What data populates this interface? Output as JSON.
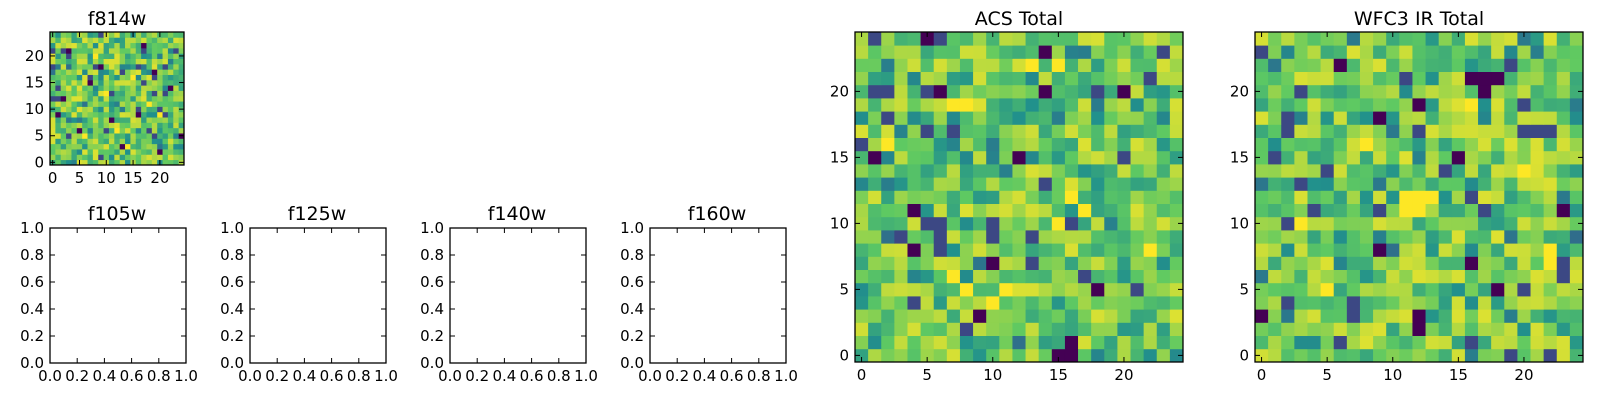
{
  "colormap": [
    "#440154",
    "#3b528b",
    "#21918c",
    "#5ec962",
    "#fde725"
  ],
  "chart_data": [
    {
      "id": "f814w",
      "type": "heatmap",
      "title": "f814w",
      "xlim": [
        -0.5,
        24.5
      ],
      "ylim": [
        -0.5,
        24.5
      ],
      "xticks": [
        0,
        5,
        10,
        15,
        20
      ],
      "yticks": [
        0,
        5,
        10,
        15,
        20
      ],
      "xtick_labels": [
        "0",
        "5",
        "10",
        "15",
        "20"
      ],
      "ytick_labels": [
        "0",
        "5",
        "10",
        "15",
        "20"
      ],
      "grid_size": 25,
      "seed": 814,
      "dark_cells": [
        [
          3,
          21
        ],
        [
          9,
          18
        ],
        [
          19,
          17
        ],
        [
          2,
          12
        ],
        [
          16,
          9
        ],
        [
          5,
          6
        ],
        [
          13,
          3
        ],
        [
          20,
          2
        ],
        [
          22,
          14
        ],
        [
          7,
          15
        ],
        [
          11,
          8
        ],
        [
          17,
          22
        ],
        [
          24,
          5
        ],
        [
          1,
          9
        ]
      ],
      "yellow_cells": [
        [
          6,
          5
        ],
        [
          10,
          13
        ],
        [
          15,
          16
        ],
        [
          18,
          11
        ],
        [
          12,
          6
        ],
        [
          8,
          20
        ],
        [
          20,
          9
        ],
        [
          14,
          3
        ]
      ]
    },
    {
      "id": "f105w",
      "type": "heatmap",
      "title": "f105w",
      "empty": true,
      "xlim": [
        0,
        1
      ],
      "ylim": [
        0,
        1
      ],
      "xticks": [
        0,
        0.2,
        0.4,
        0.6,
        0.8,
        1.0
      ],
      "yticks": [
        0,
        0.2,
        0.4,
        0.6,
        0.8,
        1.0
      ],
      "xtick_labels": [
        "0.0",
        "0.2",
        "0.4",
        "0.6",
        "0.8",
        "1.0"
      ],
      "ytick_labels": [
        "0.0",
        "0.2",
        "0.4",
        "0.6",
        "0.8",
        "1.0"
      ]
    },
    {
      "id": "f125w",
      "type": "heatmap",
      "title": "f125w",
      "empty": true,
      "xlim": [
        0,
        1
      ],
      "ylim": [
        0,
        1
      ],
      "xticks": [
        0,
        0.2,
        0.4,
        0.6,
        0.8,
        1.0
      ],
      "yticks": [
        0,
        0.2,
        0.4,
        0.6,
        0.8,
        1.0
      ],
      "xtick_labels": [
        "0.0",
        "0.2",
        "0.4",
        "0.6",
        "0.8",
        "1.0"
      ],
      "ytick_labels": [
        "0.0",
        "0.2",
        "0.4",
        "0.6",
        "0.8",
        "1.0"
      ]
    },
    {
      "id": "f140w",
      "type": "heatmap",
      "title": "f140w",
      "empty": true,
      "xlim": [
        0,
        1
      ],
      "ylim": [
        0,
        1
      ],
      "xticks": [
        0,
        0.2,
        0.4,
        0.6,
        0.8,
        1.0
      ],
      "yticks": [
        0,
        0.2,
        0.4,
        0.6,
        0.8,
        1.0
      ],
      "xtick_labels": [
        "0.0",
        "0.2",
        "0.4",
        "0.6",
        "0.8",
        "1.0"
      ],
      "ytick_labels": [
        "0.0",
        "0.2",
        "0.4",
        "0.6",
        "0.8",
        "1.0"
      ]
    },
    {
      "id": "f160w",
      "type": "heatmap",
      "title": "f160w",
      "empty": true,
      "xlim": [
        0,
        1
      ],
      "ylim": [
        0,
        1
      ],
      "xticks": [
        0,
        0.2,
        0.4,
        0.6,
        0.8,
        1.0
      ],
      "yticks": [
        0,
        0.2,
        0.4,
        0.6,
        0.8,
        1.0
      ],
      "xtick_labels": [
        "0.0",
        "0.2",
        "0.4",
        "0.6",
        "0.8",
        "1.0"
      ],
      "ytick_labels": [
        "0.0",
        "0.2",
        "0.4",
        "0.6",
        "0.8",
        "1.0"
      ]
    },
    {
      "id": "acs-total",
      "type": "heatmap",
      "title": "ACS Total",
      "xlim": [
        -0.5,
        24.5
      ],
      "ylim": [
        -0.5,
        24.5
      ],
      "xticks": [
        0,
        5,
        10,
        15,
        20
      ],
      "yticks": [
        0,
        5,
        10,
        15,
        20
      ],
      "xtick_labels": [
        "0",
        "5",
        "10",
        "15",
        "20"
      ],
      "ytick_labels": [
        "0",
        "5",
        "10",
        "15",
        "20"
      ],
      "grid_size": 25,
      "seed": 101,
      "dark_cells": [
        [
          5,
          24
        ],
        [
          14,
          23
        ],
        [
          6,
          20
        ],
        [
          14,
          20
        ],
        [
          1,
          15
        ],
        [
          4,
          11
        ],
        [
          4,
          8
        ],
        [
          10,
          7
        ],
        [
          18,
          5
        ],
        [
          16,
          1
        ],
        [
          15,
          0
        ],
        [
          16,
          0
        ],
        [
          20,
          20
        ],
        [
          12,
          15
        ],
        [
          9,
          3
        ]
      ],
      "yellow_cells": [
        [
          13,
          22
        ],
        [
          15,
          22
        ],
        [
          7,
          19
        ],
        [
          8,
          19
        ],
        [
          16,
          12
        ],
        [
          17,
          11
        ],
        [
          7,
          6
        ],
        [
          8,
          5
        ],
        [
          10,
          4
        ],
        [
          11,
          5
        ],
        [
          15,
          10
        ],
        [
          2,
          16
        ],
        [
          22,
          8
        ]
      ]
    },
    {
      "id": "wfc3-ir-total",
      "type": "heatmap",
      "title": "WFC3 IR Total",
      "xlim": [
        -0.5,
        24.5
      ],
      "ylim": [
        -0.5,
        24.5
      ],
      "xticks": [
        0,
        5,
        10,
        15,
        20
      ],
      "yticks": [
        0,
        5,
        10,
        15,
        20
      ],
      "xtick_labels": [
        "0",
        "5",
        "10",
        "15",
        "20"
      ],
      "ytick_labels": [
        "0",
        "5",
        "10",
        "15",
        "20"
      ],
      "grid_size": 25,
      "seed": 303,
      "dark_cells": [
        [
          16,
          21
        ],
        [
          17,
          21
        ],
        [
          18,
          21
        ],
        [
          17,
          20
        ],
        [
          12,
          19
        ],
        [
          9,
          18
        ],
        [
          15,
          15
        ],
        [
          23,
          11
        ],
        [
          9,
          8
        ],
        [
          16,
          7
        ],
        [
          18,
          5
        ],
        [
          12,
          3
        ],
        [
          12,
          2
        ],
        [
          0,
          3
        ],
        [
          6,
          22
        ]
      ],
      "yellow_cells": [
        [
          11,
          12
        ],
        [
          12,
          12
        ],
        [
          13,
          12
        ],
        [
          11,
          11
        ],
        [
          12,
          11
        ],
        [
          3,
          10
        ],
        [
          22,
          8
        ],
        [
          22,
          7
        ],
        [
          16,
          19
        ],
        [
          5,
          5
        ],
        [
          20,
          14
        ],
        [
          8,
          16
        ]
      ]
    }
  ]
}
